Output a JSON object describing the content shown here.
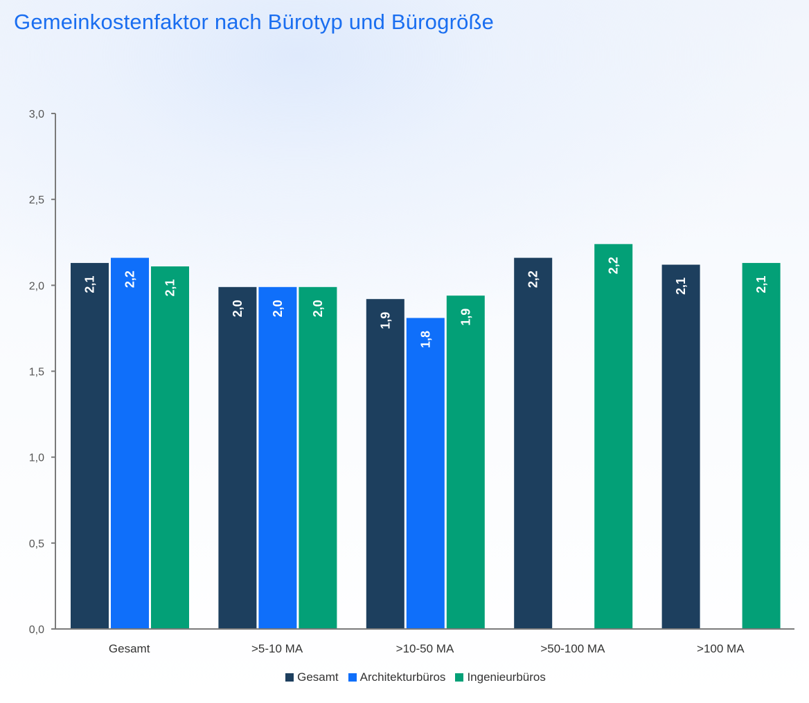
{
  "title": "Gemeinkostenfaktor nach Bürotyp und Bürogröße",
  "colors": {
    "title": "#1a6ef0",
    "gesamt": "#1d3f5e",
    "architektur": "#0f6ffa",
    "ingenieur": "#03a077",
    "axis": "#7a7a7a",
    "label_text": "#ffffff"
  },
  "chart_data": {
    "type": "bar",
    "title": "Gemeinkostenfaktor nach Bürotyp und Bürogröße",
    "categories": [
      "Gesamt",
      ">5-10 MA",
      ">10-50 MA",
      ">50-100 MA",
      ">100 MA"
    ],
    "series": [
      {
        "name": "Gesamt",
        "color": "#1d3f5e",
        "values": [
          2.13,
          1.99,
          1.92,
          2.16,
          2.12
        ],
        "labels": [
          "2,1",
          "2,0",
          "1,9",
          "2,2",
          "2,1"
        ]
      },
      {
        "name": "Architekturbüros",
        "color": "#0f6ffa",
        "values": [
          2.16,
          1.99,
          1.81,
          null,
          null
        ],
        "labels": [
          "2,2",
          "2,0",
          "1,8",
          null,
          null
        ]
      },
      {
        "name": "Ingenieurbüros",
        "color": "#03a077",
        "values": [
          2.11,
          1.99,
          1.94,
          2.24,
          2.13
        ],
        "labels": [
          "2,1",
          "2,0",
          "1,9",
          "2,2",
          "2,1"
        ]
      }
    ],
    "ylim": [
      0,
      3
    ],
    "yticks": [
      0,
      0.5,
      1,
      1.5,
      2,
      2.5,
      3
    ],
    "ytick_labels": [
      "0,0",
      "0,5",
      "1,0",
      "1,5",
      "2,0",
      "2,5",
      "3,0"
    ],
    "xlabel": "",
    "ylabel": "",
    "grid": false,
    "legend_position": "bottom"
  }
}
